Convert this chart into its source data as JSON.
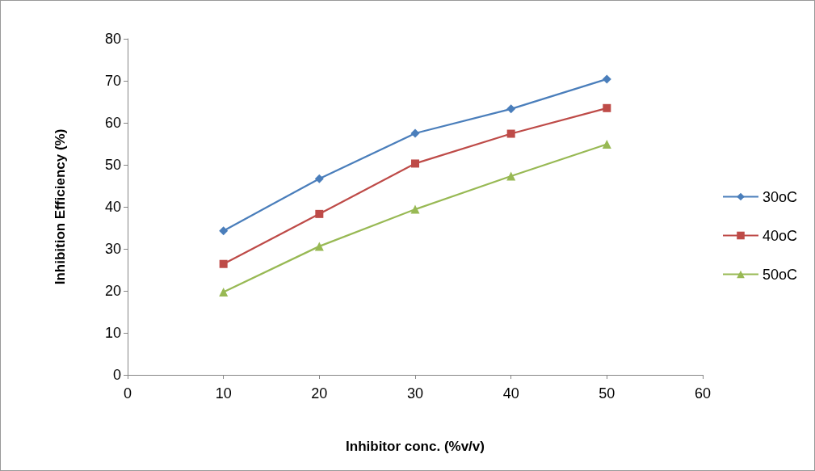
{
  "chart_data": {
    "type": "line",
    "xlabel": "Inhibitor conc. (%v/v)",
    "ylabel": "Inhibition Efficiency (%)",
    "x": [
      10,
      20,
      30,
      40,
      50
    ],
    "series": [
      {
        "name": "30oC",
        "color": "#4a7ebb",
        "marker": "diamond",
        "values": [
          34.3,
          46.7,
          57.5,
          63.3,
          70.4
        ]
      },
      {
        "name": "40oC",
        "color": "#be4b48",
        "marker": "square",
        "values": [
          26.4,
          38.3,
          50.3,
          57.4,
          63.5
        ]
      },
      {
        "name": "50oC",
        "color": "#98b954",
        "marker": "triangle",
        "values": [
          19.7,
          30.6,
          39.4,
          47.3,
          54.9
        ]
      }
    ],
    "xlim": [
      0,
      60
    ],
    "xticks": [
      0,
      10,
      20,
      30,
      40,
      50,
      60
    ],
    "ylim": [
      0,
      80
    ],
    "yticks": [
      0,
      10,
      20,
      30,
      40,
      50,
      60,
      70,
      80
    ],
    "grid": false,
    "legend": "right",
    "line_style": "solid"
  }
}
